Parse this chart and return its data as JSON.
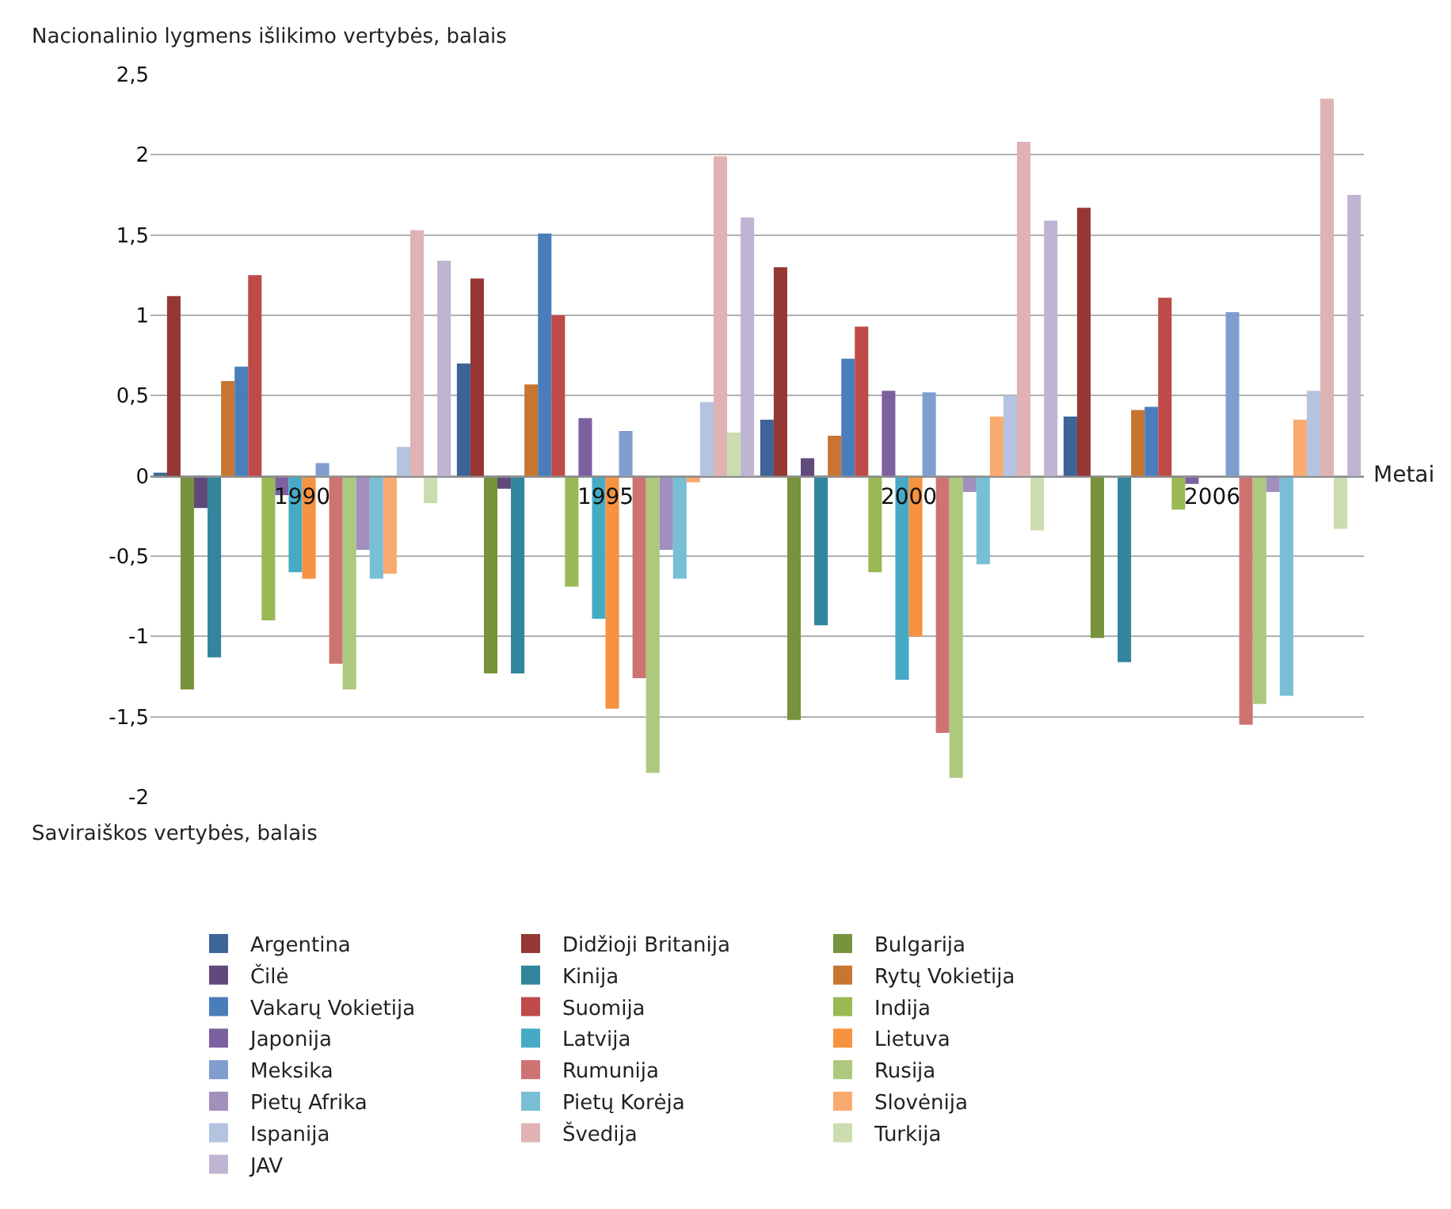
{
  "chart_data": {
    "type": "bar",
    "xlabel": "Metai",
    "ylabel": "Nacionalinio lygmens išlikimo vertybės, balais",
    "annotations": [
      "Saviraiškos vertybės, balais"
    ],
    "categories": [
      "1990",
      "1995",
      "2000",
      "2006"
    ],
    "ylim": [
      -2,
      2.5
    ],
    "yticks": [
      -2,
      {
        "value": -1.5,
        "label": "-1,5"
      },
      -1,
      {
        "value": -0.5,
        "label": "-0,5"
      },
      0,
      {
        "value": 0.5,
        "label": "0,5"
      },
      1,
      {
        "value": 1.5,
        "label": "1,5"
      },
      2,
      {
        "value": 2.5,
        "label": "2,5"
      }
    ],
    "grid": "y",
    "legend": "bottom",
    "series": [
      {
        "name": "Argentina",
        "color": "#3c6496",
        "values": [
          0.02,
          0.7,
          0.35,
          0.37
        ]
      },
      {
        "name": "Didžioji Britanija",
        "color": "#953735",
        "values": [
          1.12,
          1.23,
          1.3,
          1.67
        ]
      },
      {
        "name": "Bulgarija",
        "color": "#77933c",
        "values": [
          -1.33,
          -1.23,
          -1.52,
          -1.01
        ]
      },
      {
        "name": "Čilė",
        "color": "#604a7b",
        "values": [
          -0.2,
          -0.08,
          0.11,
          null
        ]
      },
      {
        "name": "Kinija",
        "color": "#31859c",
        "values": [
          -1.13,
          -1.23,
          -0.93,
          -1.16
        ]
      },
      {
        "name": "Rytų Vokietija",
        "color": "#c77531",
        "values": [
          0.59,
          0.57,
          0.25,
          0.41
        ]
      },
      {
        "name": "Vakarų Vokietija",
        "color": "#4a7ebb",
        "values": [
          0.68,
          1.51,
          0.73,
          0.43
        ]
      },
      {
        "name": "Suomija",
        "color": "#be4b48",
        "values": [
          1.25,
          1.0,
          0.93,
          1.11
        ]
      },
      {
        "name": "Indija",
        "color": "#98b954",
        "values": [
          -0.9,
          -0.69,
          -0.6,
          -0.21
        ]
      },
      {
        "name": "Japonija",
        "color": "#7d60a0",
        "values": [
          -0.12,
          0.36,
          0.53,
          -0.05
        ]
      },
      {
        "name": "Latvija",
        "color": "#46aac5",
        "values": [
          -0.6,
          -0.89,
          -1.27,
          null
        ]
      },
      {
        "name": "Lietuva",
        "color": "#f69240",
        "values": [
          -0.64,
          -1.45,
          -1.0,
          null
        ]
      },
      {
        "name": "Meksika",
        "color": "#7f9ecf",
        "values": [
          0.08,
          0.28,
          0.52,
          1.02
        ]
      },
      {
        "name": "Rumunija",
        "color": "#cd7372",
        "values": [
          -1.17,
          -1.26,
          -1.6,
          -1.55
        ]
      },
      {
        "name": "Rusija",
        "color": "#acc97e",
        "values": [
          -1.33,
          -1.85,
          -1.88,
          -1.42
        ]
      },
      {
        "name": "Pietų Afrika",
        "color": "#a18fbe",
        "values": [
          -0.46,
          -0.46,
          -0.1,
          -0.1
        ]
      },
      {
        "name": "Pietų Korėja",
        "color": "#78bfd6",
        "values": [
          -0.64,
          -0.64,
          -0.55,
          -1.37
        ]
      },
      {
        "name": "Slovėnija",
        "color": "#f9ab6f",
        "values": [
          -0.61,
          -0.04,
          0.37,
          0.35
        ]
      },
      {
        "name": "Ispanija",
        "color": "#b3c3e0",
        "values": [
          0.18,
          0.46,
          0.5,
          0.53
        ]
      },
      {
        "name": "Švedija",
        "color": "#dfb3b3",
        "values": [
          1.53,
          1.99,
          2.08,
          2.35
        ]
      },
      {
        "name": "Turkija",
        "color": "#cbdcaf",
        "values": [
          -0.17,
          0.27,
          -0.34,
          -0.33
        ]
      },
      {
        "name": "JAV",
        "color": "#bfb5d2",
        "values": [
          1.34,
          1.61,
          1.59,
          1.75
        ]
      }
    ]
  }
}
